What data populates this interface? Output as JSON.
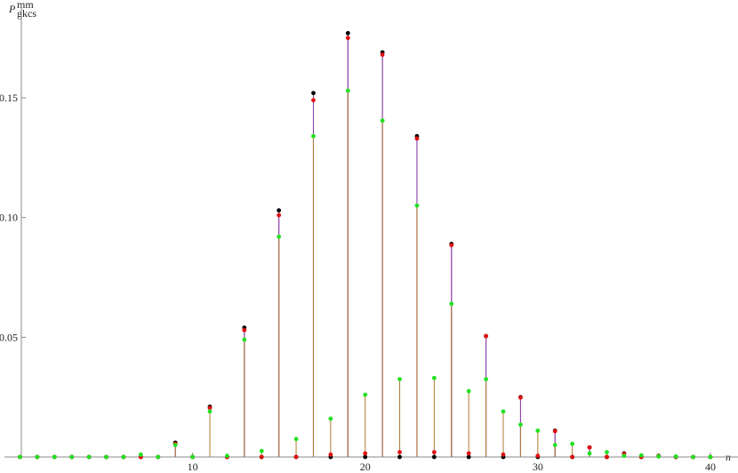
{
  "chart_data": {
    "type": "stem",
    "ylabel": {
      "main": "P",
      "sup": "mm",
      "sub": "gkcs"
    },
    "xlabel": "n",
    "x": [
      0,
      1,
      2,
      3,
      4,
      5,
      6,
      7,
      8,
      9,
      10,
      11,
      12,
      13,
      14,
      15,
      16,
      17,
      18,
      19,
      20,
      21,
      22,
      23,
      24,
      25,
      26,
      27,
      28,
      29,
      30,
      31,
      32,
      33,
      34,
      35,
      36,
      37,
      38,
      39,
      40
    ],
    "series": [
      {
        "color": "#000000",
        "stem_color": "#8e3fa8",
        "values": [
          0,
          0,
          0,
          0,
          0,
          0,
          0,
          0,
          0,
          0.006,
          0,
          0.021,
          0,
          0.054,
          0,
          0.103,
          0,
          0.152,
          0,
          0.177,
          0,
          0.169,
          0,
          0.134,
          0,
          0.089,
          0,
          0.0505,
          0,
          0.025,
          0,
          0.011,
          0,
          0.004,
          0,
          0.0015,
          0,
          0.0005,
          0,
          0,
          0
        ]
      },
      {
        "color": "#e01010",
        "stem_color": "#8e3fa8",
        "values": [
          0,
          0,
          0,
          0,
          0,
          0,
          0,
          0,
          0,
          0.0055,
          0,
          0.0205,
          0,
          0.053,
          0,
          0.101,
          0,
          0.149,
          0.001,
          0.175,
          0.0015,
          0.168,
          0.002,
          0.133,
          0.002,
          0.0885,
          0.0015,
          0.0505,
          0.001,
          0.0248,
          0.0005,
          0.0108,
          0,
          0.004,
          0,
          0.0013,
          0,
          0.0004,
          0,
          0,
          0
        ]
      },
      {
        "color": "#22e022",
        "stem_color": "#b07a30",
        "values": [
          0,
          0,
          0,
          0,
          0,
          0,
          0,
          0.001,
          0,
          0.005,
          0,
          0.019,
          0.0005,
          0.049,
          0.0025,
          0.092,
          0.0075,
          0.134,
          0.016,
          0.153,
          0.026,
          0.1405,
          0.0325,
          0.105,
          0.033,
          0.064,
          0.0275,
          0.0325,
          0.019,
          0.0135,
          0.011,
          0.005,
          0.0055,
          0.0015,
          0.002,
          0.0005,
          0.0007,
          0.0002,
          0.0002,
          0,
          0
        ]
      }
    ],
    "xlim": [
      -0.9,
      41.6
    ],
    "ylim": [
      0,
      0.189
    ],
    "xticks": [
      10,
      20,
      30,
      40
    ],
    "yticks": [
      0.05,
      {
        "value": 0.1,
        "label": "0.10"
      },
      0.15
    ]
  }
}
